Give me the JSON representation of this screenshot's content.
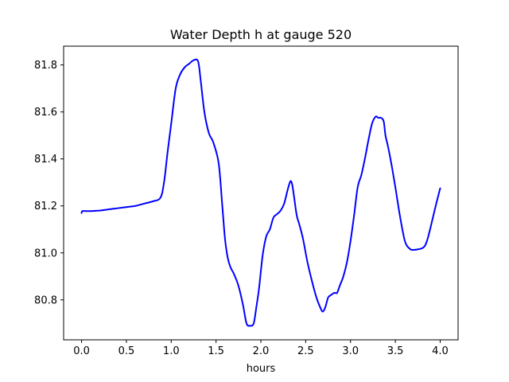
{
  "chart_data": {
    "type": "line",
    "title": "Water Depth h at gauge 520",
    "xlabel": "hours",
    "ylabel": "",
    "xlim": [
      -0.2,
      4.2
    ],
    "ylim": [
      80.63,
      81.88
    ],
    "xticks": [
      0.0,
      0.5,
      1.0,
      1.5,
      2.0,
      2.5,
      3.0,
      3.5,
      4.0
    ],
    "xtick_labels": [
      "0.0",
      "0.5",
      "1.0",
      "1.5",
      "2.0",
      "2.5",
      "3.0",
      "3.5",
      "4.0"
    ],
    "yticks": [
      80.8,
      81.0,
      81.2,
      81.4,
      81.6,
      81.8
    ],
    "ytick_labels": [
      "80.8",
      "81.0",
      "81.2",
      "81.4",
      "81.6",
      "81.8"
    ],
    "grid": false,
    "series": [
      {
        "color": "#0000ff",
        "x": [
          0.0,
          0.01,
          0.05,
          0.1,
          0.2,
          0.3,
          0.4,
          0.5,
          0.6,
          0.7,
          0.8,
          0.88,
          0.92,
          0.96,
          1.0,
          1.05,
          1.1,
          1.15,
          1.2,
          1.25,
          1.3,
          1.33,
          1.37,
          1.42,
          1.47,
          1.53,
          1.57,
          1.6,
          1.63,
          1.66,
          1.7,
          1.75,
          1.8,
          1.84,
          1.88,
          1.92,
          1.95,
          1.98,
          2.02,
          2.06,
          2.1,
          2.14,
          2.18,
          2.22,
          2.26,
          2.3,
          2.33,
          2.35,
          2.37,
          2.4,
          2.43,
          2.47,
          2.52,
          2.57,
          2.62,
          2.66,
          2.69,
          2.72,
          2.75,
          2.78,
          2.82,
          2.85,
          2.88,
          2.92,
          2.96,
          3.0,
          3.04,
          3.08,
          3.12,
          3.16,
          3.2,
          3.24,
          3.28,
          3.31,
          3.34,
          3.37,
          3.39,
          3.42,
          3.46,
          3.5,
          3.55,
          3.6,
          3.63,
          3.67,
          3.7,
          3.75,
          3.8,
          3.83,
          3.86,
          3.9,
          3.95,
          4.0
        ],
        "y": [
          81.17,
          81.178,
          81.178,
          81.178,
          81.18,
          81.185,
          81.19,
          81.195,
          81.2,
          81.21,
          81.22,
          81.235,
          81.3,
          81.43,
          81.55,
          81.7,
          81.76,
          81.79,
          81.805,
          81.82,
          81.815,
          81.73,
          81.6,
          81.51,
          81.47,
          81.38,
          81.2,
          81.06,
          80.98,
          80.94,
          80.91,
          80.86,
          80.78,
          80.7,
          80.69,
          80.7,
          80.77,
          80.85,
          80.99,
          81.07,
          81.1,
          81.15,
          81.165,
          81.18,
          81.21,
          81.27,
          81.305,
          81.29,
          81.24,
          81.16,
          81.12,
          81.06,
          80.96,
          80.88,
          80.81,
          80.77,
          80.75,
          80.77,
          80.81,
          80.82,
          80.83,
          80.83,
          80.86,
          80.9,
          80.96,
          81.05,
          81.16,
          81.28,
          81.33,
          81.4,
          81.48,
          81.55,
          81.58,
          81.575,
          81.575,
          81.56,
          81.5,
          81.45,
          81.37,
          81.28,
          81.16,
          81.06,
          81.03,
          81.015,
          81.013,
          81.015,
          81.02,
          81.03,
          81.06,
          81.12,
          81.2,
          81.275
        ]
      }
    ]
  }
}
